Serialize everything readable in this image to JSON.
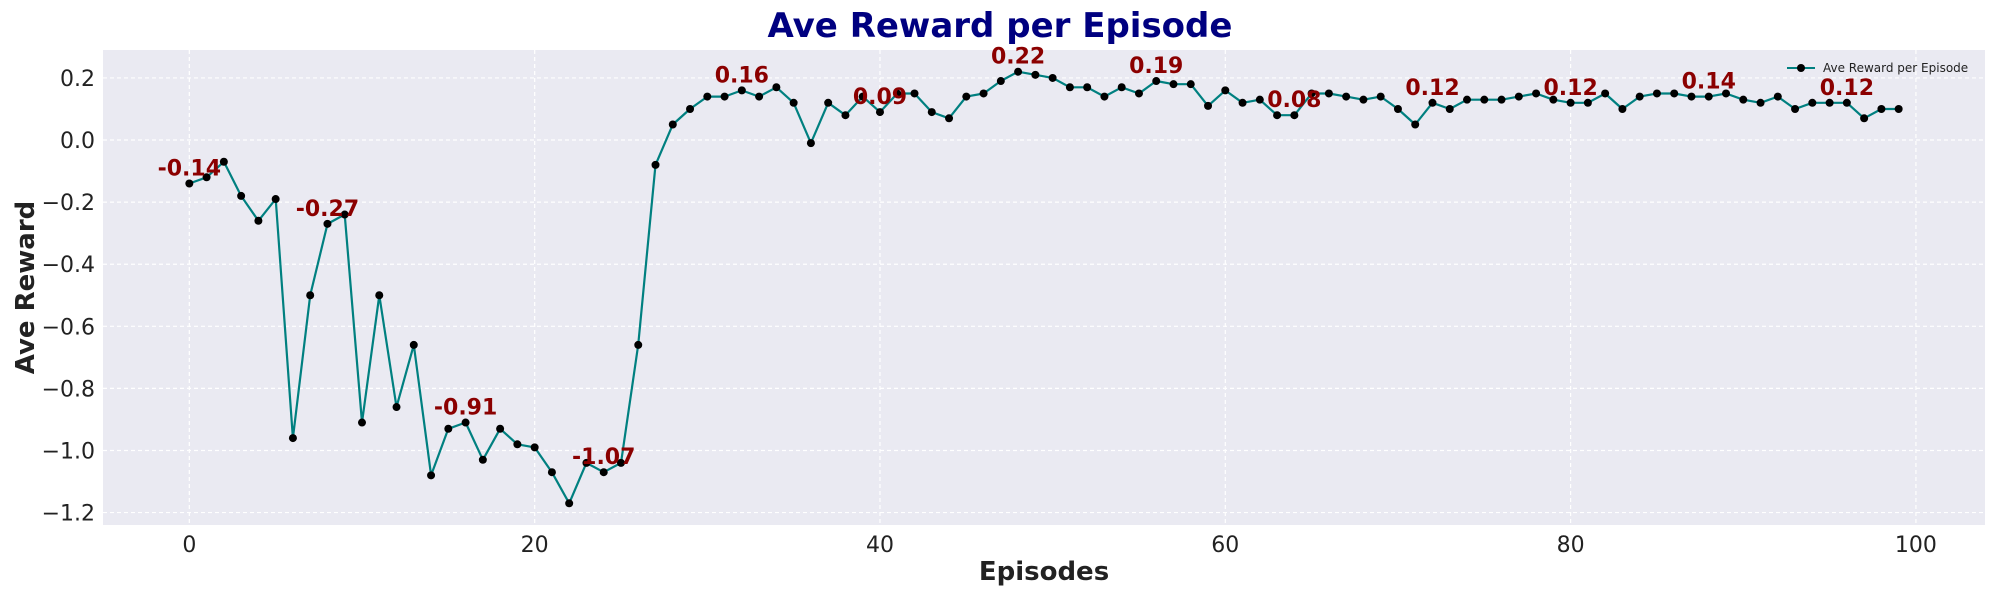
{
  "chart_data": {
    "type": "line",
    "title": "Ave Reward per Episode",
    "xlabel": "Episodes",
    "ylabel": "Ave Reward",
    "xlim": [
      -5,
      104
    ],
    "ylim": [
      -1.24,
      0.29
    ],
    "xticks": [
      0,
      20,
      40,
      60,
      80,
      100
    ],
    "yticks": [
      0.2,
      0.0,
      -0.2,
      -0.4,
      -0.6,
      -0.8,
      -1.0,
      -1.2
    ],
    "ytick_labels": [
      "0.2",
      "0.0",
      "−0.2",
      "−0.4",
      "−0.6",
      "−0.8",
      "−1.0",
      "−1.2"
    ],
    "grid": true,
    "legend_position": "top-right",
    "series": [
      {
        "name": "Ave Reward per Episode",
        "color": "#008080",
        "marker_color": "#000000",
        "x": [
          0,
          1,
          2,
          3,
          4,
          5,
          6,
          7,
          8,
          9,
          10,
          11,
          12,
          13,
          14,
          15,
          16,
          17,
          18,
          19,
          20,
          21,
          22,
          23,
          24,
          25,
          26,
          27,
          28,
          29,
          30,
          31,
          32,
          33,
          34,
          35,
          36,
          37,
          38,
          39,
          40,
          41,
          42,
          43,
          44,
          45,
          46,
          47,
          48,
          49,
          50,
          51,
          52,
          53,
          54,
          55,
          56,
          57,
          58,
          59,
          60,
          61,
          62,
          63,
          64,
          65,
          66,
          67,
          68,
          69,
          70,
          71,
          72,
          73,
          74,
          75,
          76,
          77,
          78,
          79,
          80,
          81,
          82,
          83,
          84,
          85,
          86,
          87,
          88,
          89,
          90,
          91,
          92,
          93,
          94,
          95,
          96,
          97,
          98,
          99
        ],
        "y": [
          -0.14,
          -0.12,
          -0.07,
          -0.18,
          -0.26,
          -0.19,
          -0.96,
          -0.5,
          -0.27,
          -0.24,
          -0.91,
          -0.5,
          -0.86,
          -0.66,
          -1.08,
          -0.93,
          -0.91,
          -1.03,
          -0.93,
          -0.98,
          -0.99,
          -1.07,
          -1.17,
          -1.04,
          -1.07,
          -1.04,
          -0.66,
          -0.08,
          0.05,
          0.1,
          0.14,
          0.14,
          0.16,
          0.14,
          0.17,
          0.12,
          -0.01,
          0.12,
          0.08,
          0.14,
          0.09,
          0.15,
          0.15,
          0.09,
          0.07,
          0.14,
          0.15,
          0.19,
          0.22,
          0.21,
          0.2,
          0.17,
          0.17,
          0.14,
          0.17,
          0.15,
          0.19,
          0.18,
          0.18,
          0.11,
          0.16,
          0.12,
          0.13,
          0.08,
          0.08,
          0.15,
          0.15,
          0.14,
          0.13,
          0.14,
          0.1,
          0.05,
          0.12,
          0.1,
          0.13,
          0.13,
          0.13,
          0.14,
          0.15,
          0.13,
          0.12,
          0.12,
          0.15,
          0.1,
          0.14,
          0.15,
          0.15,
          0.14,
          0.14,
          0.15,
          0.13,
          0.12,
          0.14,
          0.1,
          0.12,
          0.12,
          0.12,
          0.07,
          0.1,
          0.1
        ]
      }
    ],
    "annotations": [
      {
        "x": 0,
        "y": -0.14,
        "text": "-0.14"
      },
      {
        "x": 8,
        "y": -0.27,
        "text": "-0.27"
      },
      {
        "x": 16,
        "y": -0.91,
        "text": "-0.91"
      },
      {
        "x": 24,
        "y": -1.07,
        "text": "-1.07"
      },
      {
        "x": 32,
        "y": 0.16,
        "text": "0.16"
      },
      {
        "x": 40,
        "y": 0.09,
        "text": "0.09"
      },
      {
        "x": 48,
        "y": 0.22,
        "text": "0.22"
      },
      {
        "x": 56,
        "y": 0.19,
        "text": "0.19"
      },
      {
        "x": 64,
        "y": 0.08,
        "text": "0.08"
      },
      {
        "x": 72,
        "y": 0.12,
        "text": "0.12"
      },
      {
        "x": 80,
        "y": 0.12,
        "text": "0.12"
      },
      {
        "x": 88,
        "y": 0.14,
        "text": "0.14"
      },
      {
        "x": 96,
        "y": 0.12,
        "text": "0.12"
      }
    ],
    "colors": {
      "plot_background": "#eaeaf2",
      "grid": "#ffffff",
      "title": "#000080",
      "annotation": "#8b0000"
    }
  }
}
